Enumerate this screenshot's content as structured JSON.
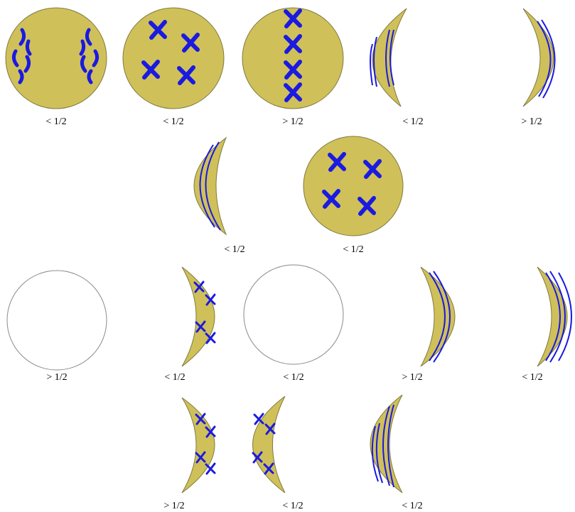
{
  "figure": {
    "colors": {
      "cell_fill": "#cfc05a",
      "cell_stroke": "#7f7a40",
      "empty_fill": "#ffffff",
      "empty_stroke": "#8a8a8a",
      "chromosome": "#1a1ae0"
    },
    "panels": [
      {
        "shape": "circle",
        "content": "anaphase-chromosomes",
        "label": "< 1/2"
      },
      {
        "shape": "circle",
        "content": "four-x-chromosomes",
        "label": "< 1/2"
      },
      {
        "shape": "circle",
        "content": "metaphase-column",
        "label": "> 1/2"
      },
      {
        "shape": "crescent-left",
        "content": "strands",
        "label": "< 1/2"
      },
      {
        "shape": "crescent-right",
        "content": "strands",
        "label": "> 1/2"
      },
      {
        "shape": "crescent-left",
        "content": "strands",
        "label": "< 1/2"
      },
      {
        "shape": "circle",
        "content": "four-x-chromosomes",
        "label": "< 1/2"
      },
      {
        "shape": "circle-empty",
        "content": "none",
        "label": "> 1/2"
      },
      {
        "shape": "crescent-right",
        "content": "x-chromosomes",
        "label": "< 1/2"
      },
      {
        "shape": "circle-empty",
        "content": "none",
        "label": "< 1/2"
      },
      {
        "shape": "crescent-right",
        "content": "strands",
        "label": "> 1/2"
      },
      {
        "shape": "crescent-right",
        "content": "strands",
        "label": "< 1/2"
      },
      {
        "shape": "crescent-right",
        "content": "x-chromosomes",
        "label": "> 1/2"
      },
      {
        "shape": "crescent-left",
        "content": "x-chromosomes",
        "label": "< 1/2"
      },
      {
        "shape": "crescent-left",
        "content": "strands",
        "label": "< 1/2"
      }
    ]
  }
}
